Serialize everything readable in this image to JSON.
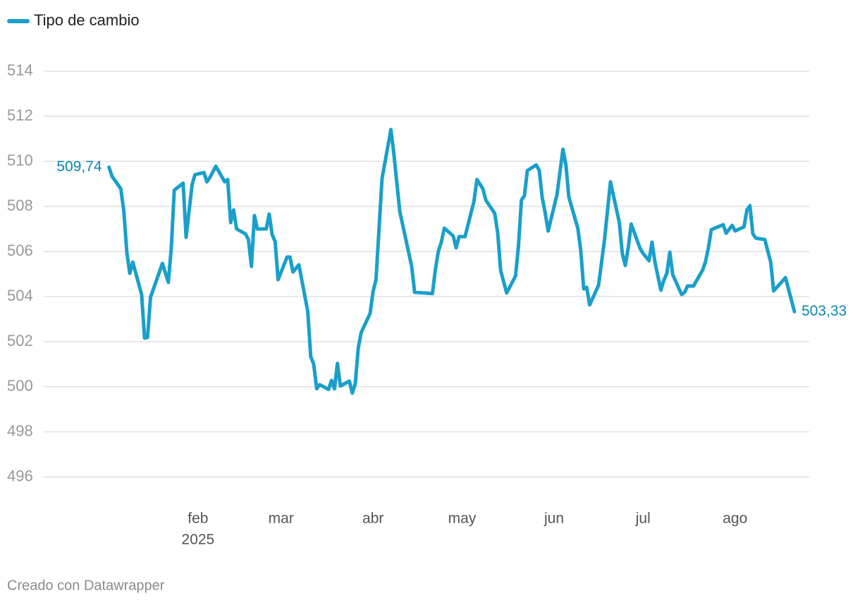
{
  "chart_data": {
    "type": "line",
    "footer": "Creado con Datawrapper",
    "x": [
      2,
      3,
      6,
      7,
      8,
      9,
      10,
      13,
      14,
      15,
      16,
      20,
      22,
      23,
      24,
      27,
      28,
      30,
      31,
      34,
      35,
      36,
      38,
      41,
      42,
      43,
      44,
      45,
      48,
      49,
      50,
      51,
      52,
      55,
      56,
      57,
      58,
      59,
      62,
      63,
      64,
      66,
      69,
      70,
      71,
      72,
      73,
      76,
      77,
      78,
      79,
      80,
      83,
      84,
      85,
      86,
      87,
      90,
      91,
      92,
      94,
      97,
      98,
      100,
      104,
      105,
      111,
      112,
      113,
      114,
      115,
      118,
      119,
      120,
      122,
      125,
      126,
      128,
      129,
      132,
      133,
      134,
      136,
      139,
      140,
      141,
      142,
      143,
      146,
      147,
      148,
      149,
      150,
      153,
      155,
      156,
      157,
      160,
      161,
      162,
      163,
      164,
      167,
      169,
      171,
      174,
      175,
      176,
      177,
      178,
      181,
      182,
      184,
      185,
      186,
      188,
      189,
      190,
      191,
      192,
      195,
      196,
      197,
      199,
      202,
      203,
      204,
      205,
      209,
      210,
      212,
      213,
      216,
      217,
      218,
      219,
      220,
      223,
      225,
      226,
      230,
      233
    ],
    "series": [
      {
        "name": "Tipo de cambio",
        "color": "#1a9fcb",
        "values": [
          509.74,
          509.34,
          508.78,
          507.78,
          505.97,
          505.03,
          505.53,
          504.09,
          502.16,
          502.19,
          503.97,
          505.47,
          504.63,
          506.16,
          508.72,
          509.03,
          506.63,
          508.97,
          509.41,
          509.5,
          509.09,
          509.28,
          509.78,
          509.09,
          509.19,
          507.28,
          507.84,
          507.0,
          506.78,
          506.53,
          505.34,
          507.59,
          507.0,
          507.0,
          507.66,
          506.75,
          506.44,
          504.75,
          505.75,
          505.75,
          505.09,
          505.41,
          503.34,
          501.34,
          501.0,
          499.91,
          500.09,
          499.88,
          500.28,
          499.91,
          501.03,
          500.03,
          500.25,
          499.72,
          500.13,
          501.72,
          502.41,
          503.25,
          504.22,
          504.75,
          509.22,
          511.41,
          510.34,
          507.78,
          505.34,
          504.19,
          504.13,
          505.19,
          506.0,
          506.41,
          507.03,
          506.69,
          506.16,
          506.66,
          506.66,
          508.22,
          509.19,
          508.78,
          508.28,
          507.69,
          506.84,
          505.16,
          504.16,
          504.91,
          506.25,
          508.28,
          508.47,
          509.59,
          509.84,
          509.59,
          508.38,
          507.72,
          506.91,
          508.53,
          510.53,
          509.84,
          508.41,
          507.03,
          506.03,
          504.34,
          504.41,
          503.63,
          504.5,
          506.53,
          509.09,
          507.28,
          505.91,
          505.38,
          506.16,
          507.22,
          506.13,
          505.91,
          505.59,
          506.41,
          505.53,
          504.28,
          504.72,
          505.03,
          505.97,
          504.97,
          504.09,
          504.19,
          504.47,
          504.47,
          505.16,
          505.53,
          506.16,
          506.97,
          507.19,
          506.81,
          507.16,
          506.91,
          507.09,
          507.84,
          508.03,
          506.78,
          506.59,
          506.53,
          505.53,
          504.25,
          504.84,
          503.33
        ],
        "value_labels": [
          "509,74",
          null,
          null,
          null,
          null,
          null,
          null,
          null,
          null,
          null,
          null,
          null,
          null,
          null,
          null,
          null,
          null,
          null,
          null,
          null,
          null,
          null,
          null,
          null,
          null,
          null,
          null,
          null,
          null,
          null,
          null,
          null,
          null,
          null,
          null,
          null,
          null,
          null,
          null,
          null,
          null,
          null,
          null,
          null,
          null,
          null,
          null,
          null,
          null,
          null,
          null,
          null,
          null,
          null,
          null,
          null,
          null,
          null,
          null,
          null,
          null,
          null,
          null,
          null,
          null,
          null,
          null,
          null,
          null,
          null,
          null,
          null,
          null,
          null,
          null,
          null,
          null,
          null,
          null,
          null,
          null,
          null,
          null,
          null,
          null,
          null,
          null,
          null,
          null,
          null,
          null,
          null,
          null,
          null,
          null,
          null,
          null,
          null,
          null,
          null,
          null,
          null,
          null,
          null,
          null,
          null,
          null,
          null,
          null,
          null,
          null,
          null,
          null,
          null,
          null,
          null,
          null,
          null,
          null,
          null,
          null,
          null,
          null,
          null,
          null,
          null,
          null,
          null,
          null,
          null,
          null,
          null,
          null,
          null,
          null,
          null,
          null,
          null,
          null,
          null,
          null,
          "503,33"
        ]
      }
    ],
    "xlim": [
      -20,
      238
    ],
    "xticks": [
      {
        "value": 32,
        "label": "feb"
      },
      {
        "value": 60,
        "label": "mar"
      },
      {
        "value": 91,
        "label": "abr"
      },
      {
        "value": 121,
        "label": "may"
      },
      {
        "value": 152,
        "label": "jun"
      },
      {
        "value": 182,
        "label": "jul"
      },
      {
        "value": 213,
        "label": "ago"
      }
    ],
    "x_year_label": "2025",
    "ylim": [
      495.5,
      515
    ],
    "yticks": [
      496,
      498,
      500,
      502,
      504,
      506,
      508,
      510,
      512,
      514
    ],
    "grid": true,
    "legend": "top-left"
  }
}
